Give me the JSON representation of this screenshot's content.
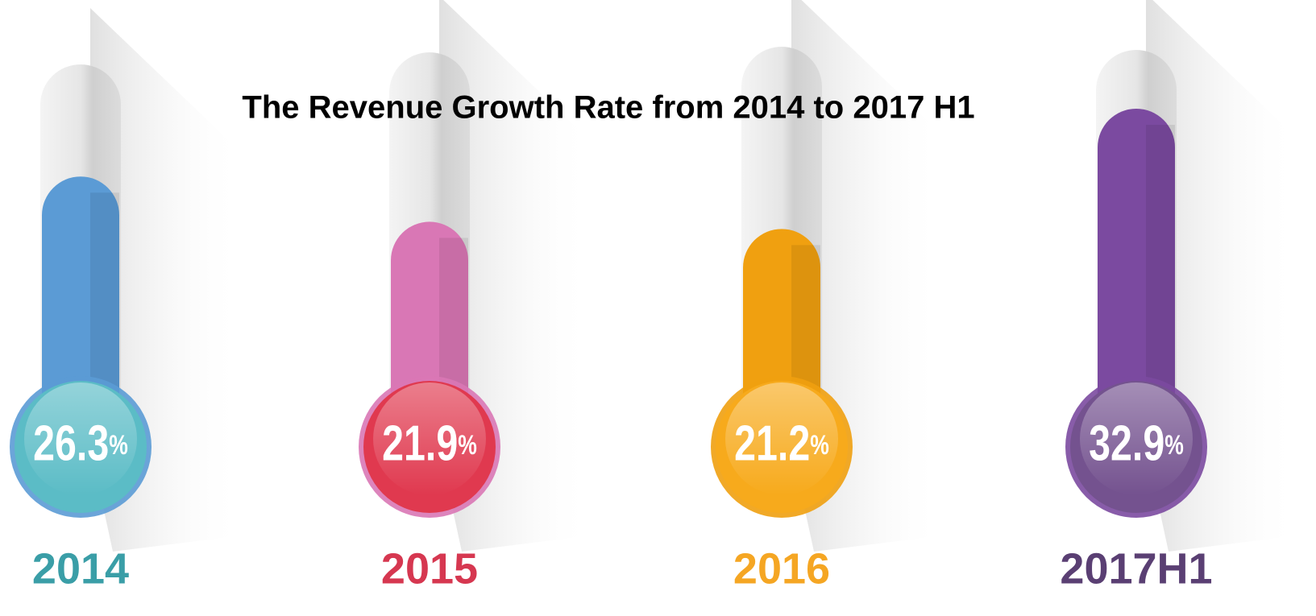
{
  "chart_data": {
    "type": "thermometer",
    "title": "The Revenue Growth Rate from 2014 to 2017 H1",
    "categories": [
      "2014",
      "2015",
      "2016",
      "2017H1"
    ],
    "values": [
      26.3,
      21.9,
      21.2,
      32.9
    ],
    "value_labels": [
      "26.3%",
      "21.9%",
      "21.2%",
      "32.9%"
    ],
    "colors": [
      "#5bbcc6",
      "#e0394f",
      "#f7aa1c",
      "#74528f"
    ],
    "tube_colors": [
      "#5b9bd5",
      "#d977b5",
      "#f0a010",
      "#7b4aa0"
    ],
    "label_colors": [
      "#3a9ea7",
      "#d63750",
      "#f5a623",
      "#5a3f73"
    ]
  }
}
